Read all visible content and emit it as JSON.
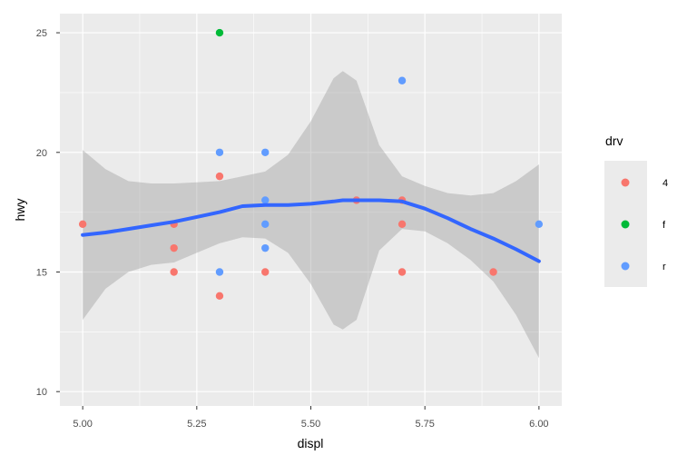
{
  "chart_data": {
    "type": "scatter",
    "xlabel": "displ",
    "ylabel": "hwy",
    "xlim": [
      4.95,
      6.05
    ],
    "ylim": [
      9.4,
      25.8
    ],
    "x_ticks": [
      5.0,
      5.25,
      5.5,
      5.75,
      6.0
    ],
    "x_tick_labels": [
      "5.00",
      "5.25",
      "5.50",
      "5.75",
      "6.00"
    ],
    "y_ticks": [
      10,
      15,
      20,
      25
    ],
    "y_tick_labels": [
      "10",
      "15",
      "20",
      "25"
    ],
    "grid": true,
    "legend": {
      "title": "drv",
      "position": "right",
      "entries": [
        {
          "label": "4",
          "color": "#F8766D"
        },
        {
          "label": "f",
          "color": "#00BA38"
        },
        {
          "label": "r",
          "color": "#619CFF"
        }
      ]
    },
    "series": [
      {
        "name": "4",
        "color": "#F8766D",
        "points": [
          {
            "x": 5.0,
            "y": 17
          },
          {
            "x": 5.2,
            "y": 17
          },
          {
            "x": 5.2,
            "y": 16
          },
          {
            "x": 5.2,
            "y": 15
          },
          {
            "x": 5.3,
            "y": 19
          },
          {
            "x": 5.3,
            "y": 14
          },
          {
            "x": 5.4,
            "y": 15
          },
          {
            "x": 5.6,
            "y": 18
          },
          {
            "x": 5.7,
            "y": 18
          },
          {
            "x": 5.7,
            "y": 17
          },
          {
            "x": 5.7,
            "y": 15
          },
          {
            "x": 5.9,
            "y": 15
          }
        ]
      },
      {
        "name": "f",
        "color": "#00BA38",
        "points": [
          {
            "x": 5.3,
            "y": 25
          }
        ]
      },
      {
        "name": "r",
        "color": "#619CFF",
        "points": [
          {
            "x": 5.3,
            "y": 20
          },
          {
            "x": 5.3,
            "y": 15
          },
          {
            "x": 5.4,
            "y": 20
          },
          {
            "x": 5.4,
            "y": 18
          },
          {
            "x": 5.4,
            "y": 17
          },
          {
            "x": 5.4,
            "y": 16
          },
          {
            "x": 5.7,
            "y": 23
          },
          {
            "x": 6.0,
            "y": 17
          }
        ]
      }
    ],
    "smooth": {
      "color": "#3366FF",
      "band_color": "#999999",
      "points": [
        {
          "x": 5.0,
          "fit": 16.55,
          "lower": 13.0,
          "upper": 20.1
        },
        {
          "x": 5.05,
          "fit": 16.65,
          "lower": 14.3,
          "upper": 19.3
        },
        {
          "x": 5.1,
          "fit": 16.8,
          "lower": 15.0,
          "upper": 18.8
        },
        {
          "x": 5.15,
          "fit": 16.95,
          "lower": 15.3,
          "upper": 18.7
        },
        {
          "x": 5.2,
          "fit": 17.1,
          "lower": 15.4,
          "upper": 18.7
        },
        {
          "x": 5.25,
          "fit": 17.3,
          "lower": 15.8,
          "upper": 18.75
        },
        {
          "x": 5.3,
          "fit": 17.5,
          "lower": 16.2,
          "upper": 18.8
        },
        {
          "x": 5.35,
          "fit": 17.75,
          "lower": 16.45,
          "upper": 19.0
        },
        {
          "x": 5.4,
          "fit": 17.8,
          "lower": 16.4,
          "upper": 19.2
        },
        {
          "x": 5.45,
          "fit": 17.8,
          "lower": 15.8,
          "upper": 19.9
        },
        {
          "x": 5.5,
          "fit": 17.85,
          "lower": 14.5,
          "upper": 21.3
        },
        {
          "x": 5.55,
          "fit": 17.95,
          "lower": 12.8,
          "upper": 23.1
        },
        {
          "x": 5.57,
          "fit": 18.0,
          "lower": 12.6,
          "upper": 23.4
        },
        {
          "x": 5.6,
          "fit": 18.0,
          "lower": 13.0,
          "upper": 23.0
        },
        {
          "x": 5.65,
          "fit": 18.0,
          "lower": 15.9,
          "upper": 20.3
        },
        {
          "x": 5.7,
          "fit": 17.95,
          "lower": 16.8,
          "upper": 19.0
        },
        {
          "x": 5.75,
          "fit": 17.65,
          "lower": 16.7,
          "upper": 18.6
        },
        {
          "x": 5.8,
          "fit": 17.25,
          "lower": 16.2,
          "upper": 18.3
        },
        {
          "x": 5.85,
          "fit": 16.8,
          "lower": 15.5,
          "upper": 18.2
        },
        {
          "x": 5.9,
          "fit": 16.4,
          "lower": 14.6,
          "upper": 18.3
        },
        {
          "x": 5.95,
          "fit": 15.95,
          "lower": 13.2,
          "upper": 18.8
        },
        {
          "x": 6.0,
          "fit": 15.45,
          "lower": 11.4,
          "upper": 19.5
        }
      ]
    }
  }
}
